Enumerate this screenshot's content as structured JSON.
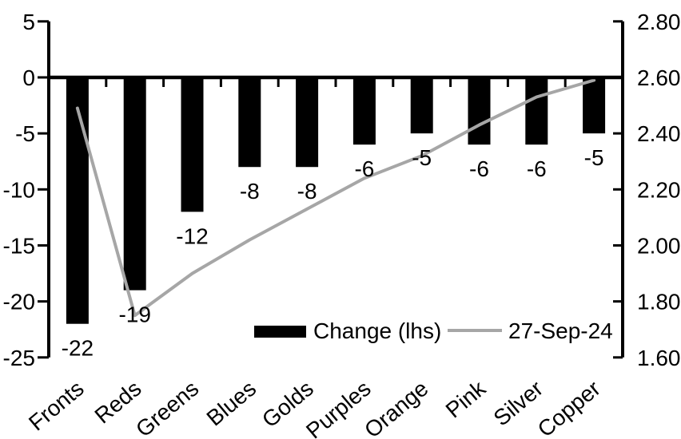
{
  "chart_data": {
    "type": "combo",
    "categories": [
      "Fronts",
      "Reds",
      "Greens",
      "Blues",
      "Golds",
      "Purples",
      "Orange",
      "Pink",
      "Silver",
      "Copper"
    ],
    "series": [
      {
        "name": "Change (lhs)",
        "type": "bar",
        "axis": "left",
        "color": "#000000",
        "values": [
          -22,
          -19,
          -12,
          -8,
          -8,
          -6,
          -5,
          -6,
          -6,
          -5
        ],
        "data_labels": [
          "-22",
          "-19",
          "-12",
          "-8",
          "-8",
          "-6",
          "-5",
          "-6",
          "-6",
          "-5"
        ]
      },
      {
        "name": "27-Sep-24",
        "type": "line",
        "axis": "right",
        "color": "#a6a6a6",
        "values": [
          2.49,
          1.75,
          1.9,
          2.02,
          2.13,
          2.24,
          2.32,
          2.43,
          2.53,
          2.59
        ]
      }
    ],
    "left_axis": {
      "min": -25,
      "max": 5,
      "tick_step": 5,
      "tick_labels": [
        "5",
        "0",
        "-5",
        "-10",
        "-15",
        "-20",
        "-25"
      ],
      "tick_values": [
        5,
        0,
        -5,
        -10,
        -15,
        -20,
        -25
      ]
    },
    "right_axis": {
      "min": 1.6,
      "max": 2.8,
      "tick_step": 0.2,
      "tick_labels": [
        "2.80",
        "2.60",
        "2.40",
        "2.20",
        "2.00",
        "1.80",
        "1.60"
      ],
      "tick_values": [
        2.8,
        2.6,
        2.4,
        2.2,
        2.0,
        1.8,
        1.6
      ]
    },
    "legend": [
      {
        "label": "Change (lhs)",
        "swatch": "bar",
        "color": "#000000"
      },
      {
        "label": "27-Sep-24",
        "swatch": "line",
        "color": "#a6a6a6"
      }
    ],
    "title": "",
    "xlabel": "",
    "ylabel": "",
    "grid": false,
    "legend_position": "inside-bottom"
  },
  "colors": {
    "bar": "#000000",
    "line": "#a6a6a6",
    "axis": "#000000",
    "text": "#000000",
    "background": "#ffffff"
  }
}
